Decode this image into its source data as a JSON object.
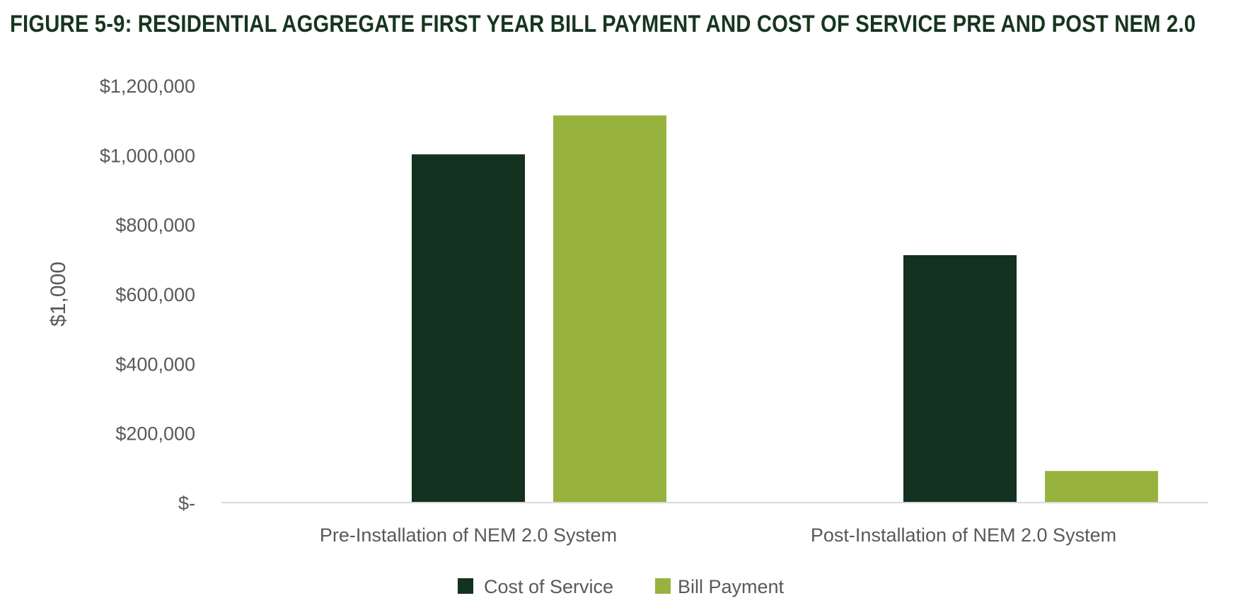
{
  "page": {
    "title": "FIGURE 5-9: RESIDENTIAL AGGREGATE FIRST YEAR BILL PAYMENT AND COST OF SERVICE PRE AND POST NEM 2.0"
  },
  "chart_data": {
    "type": "bar",
    "title": "FIGURE 5-9: RESIDENTIAL AGGREGATE FIRST YEAR BILL PAYMENT AND COST OF SERVICE PRE AND POST NEM 2.0",
    "xlabel": "",
    "ylabel": "$1,000",
    "ylim": [
      0,
      1200000
    ],
    "yticks": [
      0,
      200000,
      400000,
      600000,
      800000,
      1000000,
      1200000
    ],
    "ytick_labels": [
      "$-",
      "$200,000",
      "$400,000",
      "$600,000",
      "$800,000",
      "$1,000,000",
      "$1,200,000"
    ],
    "categories": [
      "Pre-Installation of NEM 2.0 System",
      "Post-Installation of NEM 2.0 System"
    ],
    "series": [
      {
        "name": "Cost of Service",
        "color": "#13311f",
        "values": [
          1002000,
          712000
        ]
      },
      {
        "name": "Bill Payment",
        "color": "#98b23e",
        "values": [
          1114000,
          91000
        ]
      }
    ],
    "grid": false,
    "legend": "bottom"
  }
}
